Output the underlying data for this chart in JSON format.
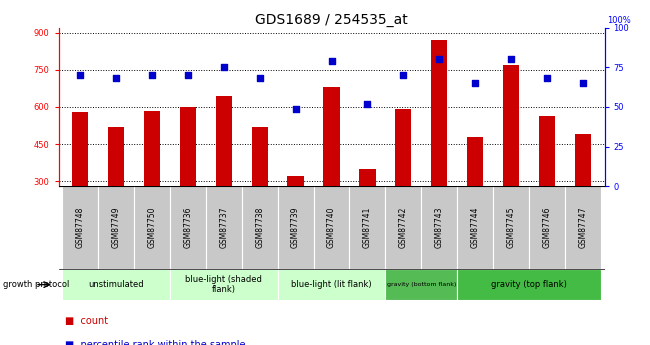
{
  "title": "GDS1689 / 254535_at",
  "samples": [
    "GSM87748",
    "GSM87749",
    "GSM87750",
    "GSM87736",
    "GSM87737",
    "GSM87738",
    "GSM87739",
    "GSM87740",
    "GSM87741",
    "GSM87742",
    "GSM87743",
    "GSM87744",
    "GSM87745",
    "GSM87746",
    "GSM87747"
  ],
  "counts": [
    580,
    520,
    585,
    600,
    645,
    520,
    320,
    680,
    350,
    590,
    870,
    480,
    770,
    565,
    490
  ],
  "percentiles": [
    70,
    68,
    70,
    70,
    75,
    68,
    49,
    79,
    52,
    70,
    80,
    65,
    80,
    68,
    65
  ],
  "ylim_left": [
    280,
    920
  ],
  "ylim_right": [
    0,
    100
  ],
  "yticks_left": [
    300,
    450,
    600,
    750,
    900
  ],
  "yticks_right": [
    0,
    25,
    50,
    75,
    100
  ],
  "bar_color": "#cc0000",
  "dot_color": "#0000cc",
  "group_spans": [
    [
      0,
      2,
      "unstimulated",
      "#ccffcc"
    ],
    [
      3,
      5,
      "blue-light (shaded\nflank)",
      "#ccffcc"
    ],
    [
      6,
      8,
      "blue-light (lit flank)",
      "#ccffcc"
    ],
    [
      9,
      10,
      "gravity (bottom flank)",
      "#55bb55"
    ],
    [
      11,
      14,
      "gravity (top flank)",
      "#44bb44"
    ]
  ],
  "tick_area_bg": "#c8c8c8",
  "bar_width": 0.45,
  "dot_size": 22,
  "title_fontsize": 10,
  "tick_fontsize": 6,
  "sample_fontsize": 5.5,
  "group_fontsize": 6
}
